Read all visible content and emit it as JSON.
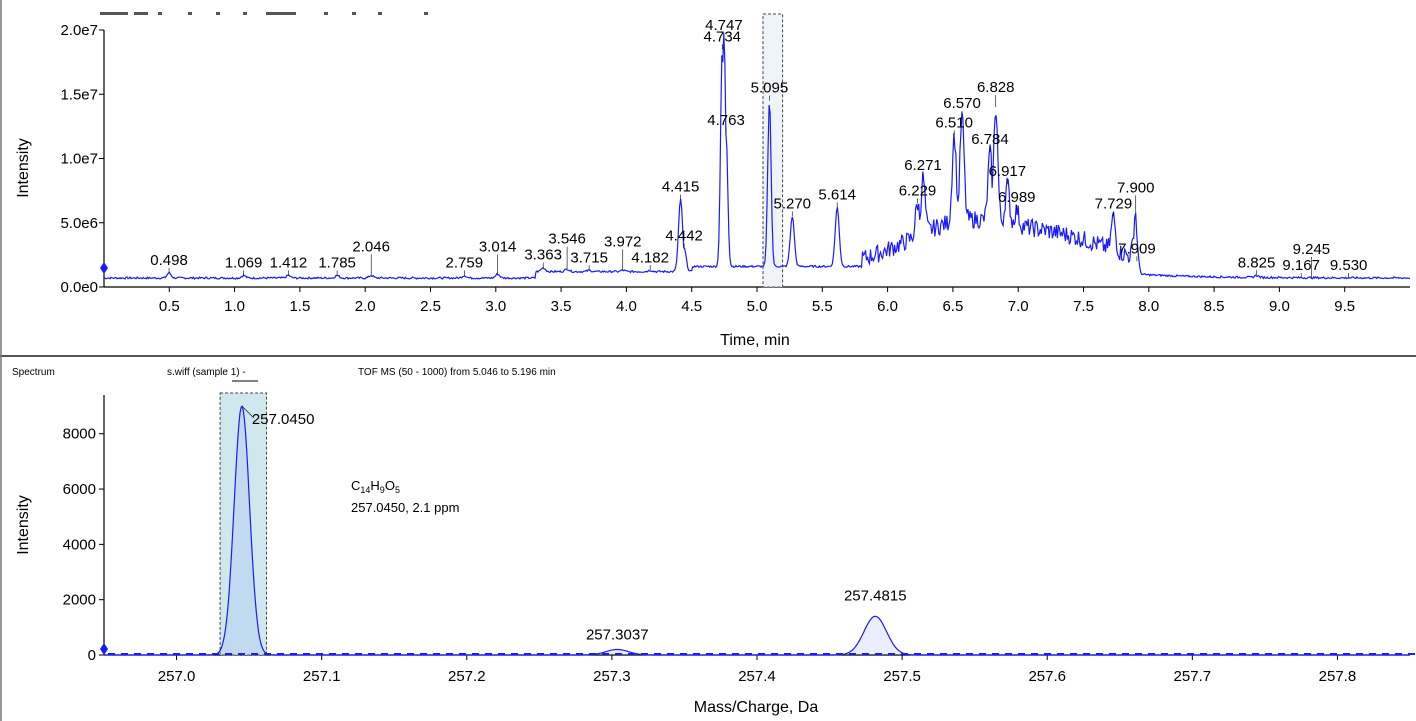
{
  "colors": {
    "trace": "#1a1aff",
    "highlight_fill": "#cfe8ee",
    "axis": "#000000",
    "divider": "#555555"
  },
  "chart_data": [
    {
      "type": "line",
      "name": "chromatogram",
      "xlabel": "Time, min",
      "ylabel": "Intensity",
      "xlim": [
        0,
        10
      ],
      "ylim": [
        0,
        20000000
      ],
      "xticks": [
        0.5,
        1.0,
        1.5,
        2.0,
        2.5,
        3.0,
        3.5,
        4.0,
        4.5,
        5.0,
        5.5,
        6.0,
        6.5,
        7.0,
        7.5,
        8.0,
        8.5,
        9.0,
        9.5
      ],
      "xtick_labels": [
        "0.5",
        "1.0",
        "1.5",
        "2.0",
        "2.5",
        "3.0",
        "3.5",
        "4.0",
        "4.5",
        "5.0",
        "5.5",
        "6.0",
        "6.5",
        "7.0",
        "7.5",
        "8.0",
        "8.5",
        "9.0",
        "9.5"
      ],
      "yticks": [
        0,
        5000000,
        10000000,
        15000000,
        20000000
      ],
      "ytick_labels": [
        "0.0e0",
        "5.0e6",
        "1.0e7",
        "1.5e7",
        "2.0e7"
      ],
      "selected_range": [
        5.046,
        5.196
      ],
      "peaks": [
        {
          "x": 0.498,
          "y": 1100000,
          "label": "0.498"
        },
        {
          "x": 1.069,
          "y": 900000,
          "label": "1.069"
        },
        {
          "x": 1.412,
          "y": 900000,
          "label": "1.412"
        },
        {
          "x": 1.785,
          "y": 900000,
          "label": "1.785"
        },
        {
          "x": 2.046,
          "y": 900000,
          "label": "2.046"
        },
        {
          "x": 2.759,
          "y": 900000,
          "label": "2.759"
        },
        {
          "x": 3.014,
          "y": 1000000,
          "label": "3.014"
        },
        {
          "x": 3.363,
          "y": 1500000,
          "label": "3.363"
        },
        {
          "x": 3.546,
          "y": 1400000,
          "label": "3.546"
        },
        {
          "x": 3.715,
          "y": 1300000,
          "label": "3.715"
        },
        {
          "x": 3.972,
          "y": 1300000,
          "label": "3.972"
        },
        {
          "x": 4.182,
          "y": 1300000,
          "label": "4.182"
        },
        {
          "x": 4.415,
          "y": 6800000,
          "label": "4.415"
        },
        {
          "x": 4.442,
          "y": 3000000,
          "label": "4.442"
        },
        {
          "x": 4.734,
          "y": 18500000,
          "label": "4.734"
        },
        {
          "x": 4.747,
          "y": 19800000,
          "label": "4.747"
        },
        {
          "x": 4.763,
          "y": 12000000,
          "label": "4.763"
        },
        {
          "x": 5.095,
          "y": 14500000,
          "label": "5.095"
        },
        {
          "x": 5.27,
          "y": 5500000,
          "label": "5.270"
        },
        {
          "x": 5.614,
          "y": 6200000,
          "label": "5.614"
        },
        {
          "x": 6.229,
          "y": 6500000,
          "label": "6.229"
        },
        {
          "x": 6.271,
          "y": 8500000,
          "label": "6.271"
        },
        {
          "x": 6.51,
          "y": 11800000,
          "label": "6.510"
        },
        {
          "x": 6.57,
          "y": 13300000,
          "label": "6.570"
        },
        {
          "x": 6.784,
          "y": 10500000,
          "label": "6.784"
        },
        {
          "x": 6.828,
          "y": 14000000,
          "label": "6.828"
        },
        {
          "x": 6.917,
          "y": 8000000,
          "label": "6.917"
        },
        {
          "x": 6.989,
          "y": 6000000,
          "label": "6.989"
        },
        {
          "x": 7.729,
          "y": 5500000,
          "label": "7.729"
        },
        {
          "x": 7.9,
          "y": 5800000,
          "label": "7.900"
        },
        {
          "x": 7.909,
          "y": 2000000,
          "label": "7.909"
        },
        {
          "x": 8.825,
          "y": 900000,
          "label": "8.825"
        },
        {
          "x": 9.167,
          "y": 700000,
          "label": "9.167"
        },
        {
          "x": 9.245,
          "y": 700000,
          "label": "9.245"
        },
        {
          "x": 9.53,
          "y": 700000,
          "label": "9.530"
        }
      ]
    },
    {
      "type": "line",
      "name": "spectrum",
      "xlabel": "Mass/Charge, Da",
      "ylabel": "Intensity",
      "xlim": [
        256.95,
        257.85
      ],
      "ylim": [
        0,
        9400
      ],
      "xticks": [
        257.0,
        257.1,
        257.2,
        257.3,
        257.4,
        257.5,
        257.6,
        257.7,
        257.8
      ],
      "xtick_labels": [
        "257.0",
        "257.1",
        "257.2",
        "257.3",
        "257.4",
        "257.5",
        "257.6",
        "257.7",
        "257.8"
      ],
      "yticks": [
        0,
        2000,
        4000,
        6000,
        8000
      ],
      "ytick_labels": [
        "0",
        "2000",
        "4000",
        "6000",
        "8000"
      ],
      "selected_range": [
        257.03,
        257.062
      ],
      "peaks": [
        {
          "x": 257.045,
          "y": 9000,
          "label": "257.0450"
        },
        {
          "x": 257.3037,
          "y": 200,
          "label": "257.3037"
        },
        {
          "x": 257.4815,
          "y": 1400,
          "label": "257.4815"
        }
      ],
      "header": {
        "left": "Spectrum",
        "sample": "s.wiff (sample 1) -",
        "scan": "TOF MS (50 - 1000) from 5.046 to 5.196 min"
      },
      "annotation": {
        "formula": {
          "c": "C",
          "c_n": "14",
          "h": "H",
          "h_n": "9",
          "o": "O",
          "o_n": "5"
        },
        "mass_line": "257.0450, 2.1 ppm"
      }
    }
  ]
}
